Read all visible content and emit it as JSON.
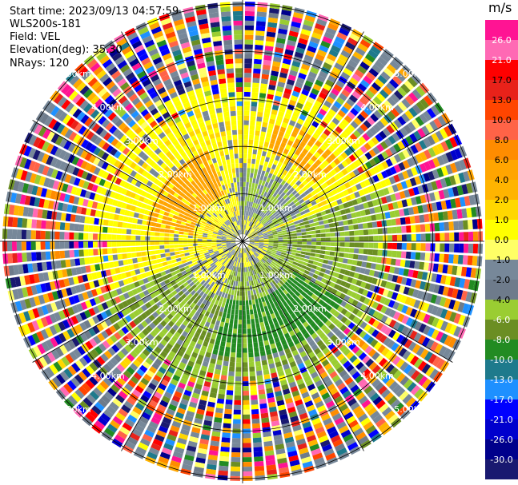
{
  "header": {
    "start_time": "Start time: 2023/09/13 04:57:59",
    "instrument": "WLS200s-181",
    "field": "Field: VEL",
    "elevation": "Elevation(deg): 35.30",
    "nrays": "NRays: 120"
  },
  "chart_data": {
    "type": "heatmap",
    "projection": "polar-ppi",
    "field": "VEL",
    "n_rays": 120,
    "elevation_deg": 35.3,
    "range_rings_km": [
      1.0,
      2.0,
      3.0,
      4.0,
      5.0
    ],
    "ring_labels": [
      "1.00km",
      "2.00km",
      "3.00km",
      "4.00km",
      "5.00km"
    ],
    "max_range_km": 5.1,
    "colorbar": {
      "unit": "m/s",
      "tick_labels": [
        "26.0",
        "21.0",
        "17.0",
        "13.0",
        "10.0",
        "8.0",
        "6.0",
        "4.0",
        "2.0",
        "1.0",
        "0.0",
        "-1.0",
        "-2.0",
        "-4.0",
        "-6.0",
        "-8.0",
        "-10.0",
        "-13.0",
        "-17.0",
        "-21.0",
        "-26.0",
        "-30.0"
      ],
      "colors": [
        "#ff1493",
        "#ff69b4",
        "#ff0000",
        "#e8221a",
        "#ff4500",
        "#ff6347",
        "#ff8c00",
        "#ffa500",
        "#ffb400",
        "#ffd700",
        "#ffff00",
        "#ffff66",
        "#778899",
        "#6e7b8b",
        "#9acd32",
        "#6b8e23",
        "#228b22",
        "#1e7a8c",
        "#1e90ff",
        "#0000ff",
        "#0000cd",
        "#00008b",
        "#191970"
      ],
      "range": [
        -30,
        30
      ]
    }
  }
}
